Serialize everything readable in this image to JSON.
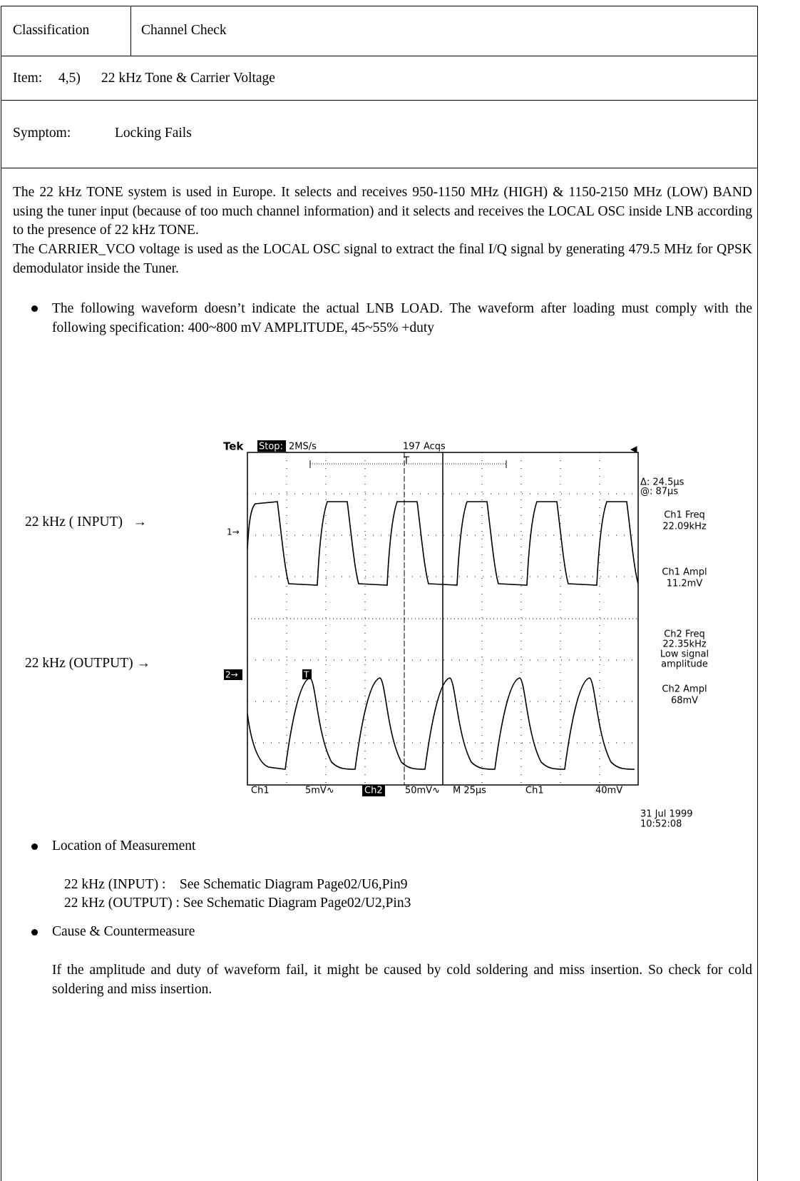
{
  "header": {
    "classification_label": "Classification",
    "classification": "Channel Check",
    "item_label": "Item:",
    "item_number": "4,5)",
    "item_title": "22 kHz Tone & Carrier Voltage",
    "symptom_label": "Symptom:",
    "symptom": "Locking Fails"
  },
  "body": {
    "paragraphs": [
      "The 22 kHz TONE system is used in Europe.  It selects and receives 950-1150 MHz (HIGH) & 1150-2150 MHz (LOW) BAND using the tuner input (because of too much channel information) and it selects and receives the LOCAL OSC inside LNB according to the presence of 22 kHz TONE.",
      "The CARRIER_VCO voltage is used as the LOCAL OSC signal to extract the final I/Q signal by generating 479.5 MHz for QPSK demodulator inside the Tuner."
    ],
    "waveform_note": "The following waveform doesn’t indicate the actual LNB LOAD. The waveform after loading must comply with the following specification: 400~800 mV AMPLITUDE, 45~55% +duty",
    "input_label": "22 kHz ( INPUT)   →",
    "output_label": "22 kHz (OUTPUT) →",
    "location_heading": "Location of Measurement",
    "locations": [
      "22 kHz (INPUT) :    See Schematic Diagram Page02/U6,Pin9",
      "22 kHz (OUTPUT) : See Schematic Diagram Page02/U2,Pin3"
    ],
    "cause_heading": "Cause & Countermeasure",
    "cause": "If the amplitude and duty of waveform fail, it might be caused by cold soldering and miss insertion. So check for cold soldering and miss insertion."
  },
  "scope": {
    "brand": "Tek",
    "state": "Stop:",
    "rate": "2MS/s",
    "acquisitions": "197 Acqs",
    "trigger_marker": "T",
    "ch1_marker": "1→",
    "ch2_marker": "2→",
    "delta": "Δ: 24.5µs",
    "at": "@: 87µs",
    "ch1_freq_label": "Ch1 Freq",
    "ch1_freq": "22.09kHz",
    "ch1_ampl_label": "Ch1 Ampl",
    "ch1_ampl": "11.2mV",
    "ch2_freq_label": "Ch2 Freq",
    "ch2_freq": "22.35kHz",
    "ch2_note_1": "Low signal",
    "ch2_note_2": "amplitude",
    "ch2_ampl_label": "Ch2 Ampl",
    "ch2_ampl": "68mV",
    "ch1_name": "Ch1",
    "ch1_scale": "5mV∿",
    "ch2_name": "Ch2",
    "ch2_scale": "50mV∿",
    "timebase": "M 25µs",
    "trigger_source": "Ch1",
    "trigger_level": "40mV",
    "date": "31 Jul 1999",
    "time": "10:52:08"
  }
}
